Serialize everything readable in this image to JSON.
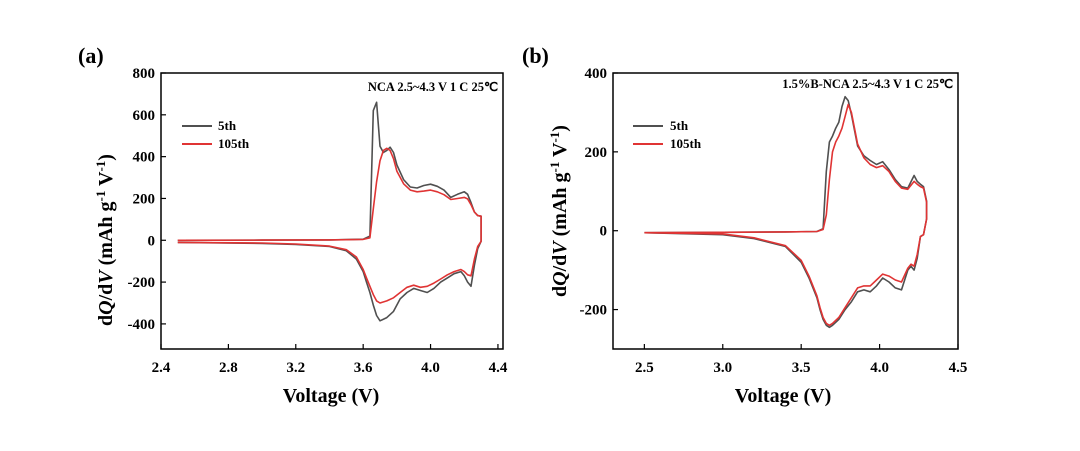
{
  "colors": {
    "cycle5": "#505050",
    "cycle105": "#e03434",
    "axis": "#000000"
  },
  "chart_data": [
    {
      "type": "line",
      "panel_label": "(a)",
      "annotation": "NCA 2.5~4.3 V 1 C 25℃",
      "xlabel": "Voltage (V)",
      "ylabel_parts": [
        "d",
        "Q",
        "/d",
        "V",
        " (mAh g",
        "-1",
        " V",
        "-1",
        ")"
      ],
      "xlim": [
        2.4,
        4.43
      ],
      "ylim": [
        -520,
        800
      ],
      "xticks": [
        2.4,
        2.8,
        3.2,
        3.6,
        4.0,
        4.4
      ],
      "xtick_labels": [
        "2.4",
        "2.8",
        "3.2",
        "3.6",
        "4.0",
        "4.4"
      ],
      "yticks": [
        -400,
        -200,
        0,
        200,
        400,
        600,
        800
      ],
      "ytick_labels": [
        "-400",
        "-200",
        "0",
        "200",
        "400",
        "600",
        "800"
      ],
      "legend_position": "upper-left",
      "series": [
        {
          "name": "5th",
          "color_key": "cycle5",
          "x": [
            2.5,
            3.0,
            3.4,
            3.6,
            3.64,
            3.66,
            3.68,
            3.7,
            3.72,
            3.74,
            3.76,
            3.78,
            3.8,
            3.84,
            3.88,
            3.92,
            3.96,
            4.0,
            4.04,
            4.08,
            4.12,
            4.16,
            4.2,
            4.22,
            4.24,
            4.26,
            4.28,
            4.3,
            4.3,
            4.28,
            4.26,
            4.24,
            4.22,
            4.2,
            4.18,
            4.14,
            4.1,
            4.06,
            4.02,
            3.98,
            3.94,
            3.9,
            3.86,
            3.82,
            3.78,
            3.74,
            3.7,
            3.68,
            3.66,
            3.64,
            3.62,
            3.6,
            3.56,
            3.5,
            3.4,
            3.2,
            3.0,
            2.5
          ],
          "y": [
            0,
            1,
            2,
            5,
            20,
            620,
            660,
            450,
            420,
            430,
            445,
            420,
            360,
            290,
            255,
            250,
            262,
            268,
            258,
            240,
            205,
            220,
            232,
            220,
            180,
            135,
            118,
            115,
            -5,
            -40,
            -120,
            -220,
            -200,
            -170,
            -150,
            -160,
            -180,
            -200,
            -230,
            -250,
            -240,
            -230,
            -250,
            -280,
            -340,
            -370,
            -385,
            -360,
            -310,
            -250,
            -200,
            -150,
            -90,
            -50,
            -30,
            -20,
            -15,
            -10
          ]
        },
        {
          "name": "105th",
          "color_key": "cycle105",
          "x": [
            2.5,
            3.0,
            3.4,
            3.6,
            3.64,
            3.66,
            3.68,
            3.7,
            3.72,
            3.74,
            3.76,
            3.78,
            3.8,
            3.84,
            3.88,
            3.92,
            3.96,
            4.0,
            4.04,
            4.08,
            4.12,
            4.16,
            4.2,
            4.22,
            4.24,
            4.26,
            4.28,
            4.3,
            4.3,
            4.28,
            4.26,
            4.24,
            4.22,
            4.2,
            4.18,
            4.14,
            4.1,
            4.06,
            4.02,
            3.98,
            3.94,
            3.9,
            3.86,
            3.82,
            3.78,
            3.74,
            3.7,
            3.68,
            3.66,
            3.64,
            3.62,
            3.6,
            3.56,
            3.5,
            3.4,
            3.2,
            3.0,
            2.5
          ],
          "y": [
            0,
            1,
            2,
            4,
            12,
            150,
            280,
            380,
            430,
            440,
            430,
            390,
            330,
            270,
            240,
            232,
            235,
            240,
            232,
            218,
            195,
            200,
            205,
            198,
            170,
            135,
            118,
            115,
            -5,
            -30,
            -90,
            -170,
            -165,
            -150,
            -140,
            -150,
            -165,
            -185,
            -205,
            -220,
            -225,
            -215,
            -225,
            -250,
            -275,
            -290,
            -300,
            -290,
            -260,
            -220,
            -180,
            -140,
            -80,
            -45,
            -28,
            -18,
            -13,
            -10
          ]
        }
      ]
    },
    {
      "type": "line",
      "panel_label": "(b)",
      "annotation": "1.5%B-NCA 2.5~4.3 V 1 C 25℃",
      "xlabel": "Voltage (V)",
      "ylabel_parts": [
        "d",
        "Q",
        "/d",
        "V",
        " (mAh g",
        "-1",
        " V",
        "-1",
        ")"
      ],
      "xlim": [
        2.3,
        4.5
      ],
      "ylim": [
        -300,
        400
      ],
      "xticks": [
        2.5,
        3.0,
        3.5,
        4.0,
        4.5
      ],
      "xtick_labels": [
        "2.5",
        "3.0",
        "3.5",
        "4.0",
        "4.5"
      ],
      "yticks": [
        -200,
        0,
        200,
        400
      ],
      "ytick_labels": [
        "-200",
        "0",
        "200",
        "400"
      ],
      "legend_position": "upper-left",
      "series": [
        {
          "name": "5th",
          "color_key": "cycle5",
          "x": [
            2.5,
            3.0,
            3.4,
            3.6,
            3.64,
            3.66,
            3.68,
            3.7,
            3.72,
            3.74,
            3.76,
            3.78,
            3.8,
            3.82,
            3.84,
            3.86,
            3.9,
            3.94,
            3.98,
            4.02,
            4.06,
            4.1,
            4.14,
            4.18,
            4.22,
            4.24,
            4.26,
            4.28,
            4.3,
            4.3,
            4.28,
            4.26,
            4.24,
            4.22,
            4.2,
            4.18,
            4.14,
            4.1,
            4.06,
            4.02,
            3.98,
            3.94,
            3.9,
            3.86,
            3.82,
            3.78,
            3.74,
            3.7,
            3.68,
            3.66,
            3.64,
            3.62,
            3.6,
            3.55,
            3.5,
            3.4,
            3.2,
            3.0,
            2.5
          ],
          "y": [
            -5,
            -4,
            -3,
            -2,
            5,
            150,
            225,
            240,
            260,
            275,
            315,
            340,
            330,
            295,
            255,
            215,
            190,
            178,
            168,
            175,
            155,
            130,
            112,
            108,
            140,
            125,
            118,
            112,
            75,
            30,
            -10,
            -15,
            -70,
            -100,
            -90,
            -100,
            -150,
            -145,
            -130,
            -120,
            -140,
            -155,
            -150,
            -155,
            -180,
            -200,
            -225,
            -240,
            -245,
            -240,
            -225,
            -200,
            -170,
            -120,
            -80,
            -40,
            -20,
            -10,
            -5
          ]
        },
        {
          "name": "105th",
          "color_key": "cycle105",
          "x": [
            2.5,
            3.0,
            3.4,
            3.6,
            3.64,
            3.66,
            3.68,
            3.7,
            3.72,
            3.74,
            3.76,
            3.78,
            3.8,
            3.82,
            3.84,
            3.86,
            3.9,
            3.94,
            3.98,
            4.02,
            4.06,
            4.1,
            4.14,
            4.18,
            4.22,
            4.24,
            4.26,
            4.28,
            4.3,
            4.3,
            4.28,
            4.26,
            4.24,
            4.22,
            4.2,
            4.18,
            4.14,
            4.1,
            4.06,
            4.02,
            3.98,
            3.94,
            3.9,
            3.86,
            3.82,
            3.78,
            3.74,
            3.7,
            3.68,
            3.66,
            3.64,
            3.62,
            3.6,
            3.55,
            3.5,
            3.4,
            3.2,
            3.0,
            2.5
          ],
          "y": [
            -5,
            -4,
            -3,
            -2,
            3,
            40,
            130,
            200,
            225,
            240,
            260,
            290,
            320,
            300,
            260,
            220,
            185,
            168,
            160,
            165,
            150,
            125,
            108,
            105,
            125,
            118,
            112,
            108,
            72,
            30,
            -10,
            -15,
            -60,
            -90,
            -85,
            -95,
            -130,
            -125,
            -115,
            -110,
            -125,
            -140,
            -140,
            -145,
            -170,
            -195,
            -220,
            -235,
            -240,
            -235,
            -220,
            -195,
            -165,
            -115,
            -75,
            -38,
            -18,
            -8,
            -5
          ]
        }
      ]
    }
  ]
}
